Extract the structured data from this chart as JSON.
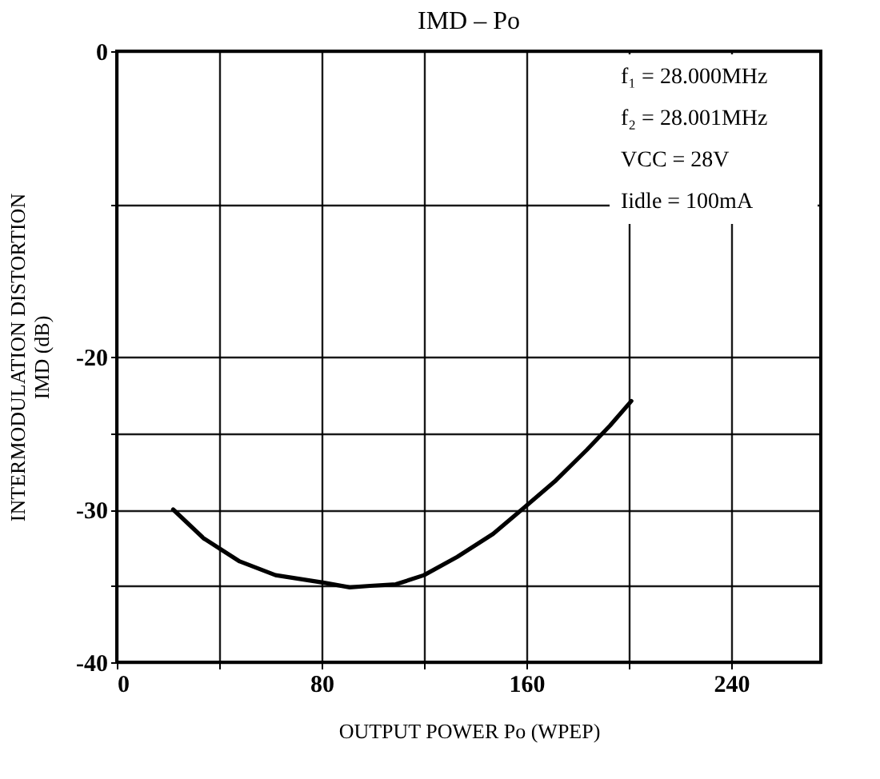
{
  "chart_data": {
    "type": "line",
    "title": "IMD – Po",
    "xlabel": "OUTPUT POWER  Po  (WPEP)",
    "ylabel": [
      "INTERMODULATION DISTORTION",
      "IMD  (dB)"
    ],
    "x": [
      22,
      34,
      48,
      62,
      81,
      91,
      99,
      109,
      120,
      133,
      147,
      159,
      171.5,
      183.6,
      192.7,
      201
    ],
    "series": [
      {
        "color": "#000000",
        "values": [
          -30,
          -31.9,
          -33.4,
          -34.3,
          -34.8,
          -35.1,
          -35.0,
          -34.9,
          -34.3,
          -33.1,
          -31.6,
          -29.9,
          -28.1,
          -26.1,
          -24.5,
          -22.9
        ]
      }
    ],
    "xlim": [
      0,
      275
    ],
    "xticks": [
      0,
      {
        "value": 40,
        "label": null
      },
      80,
      {
        "value": 120,
        "label": null
      },
      160,
      {
        "value": 200,
        "label": null
      },
      240
    ],
    "ylim": [
      -40,
      0
    ],
    "yticks": [
      -40,
      {
        "value": -35,
        "label": null
      },
      -30,
      {
        "value": -25,
        "label": null
      },
      -20,
      {
        "value": -10,
        "label": null
      },
      0
    ],
    "annotations": [
      "f₁ = 28.000MHz",
      "f₂ = 28.001MHz",
      "VCC = 28V",
      "Iidle = 100mA"
    ],
    "grid": true,
    "line_style": "solid",
    "marker": "none"
  }
}
